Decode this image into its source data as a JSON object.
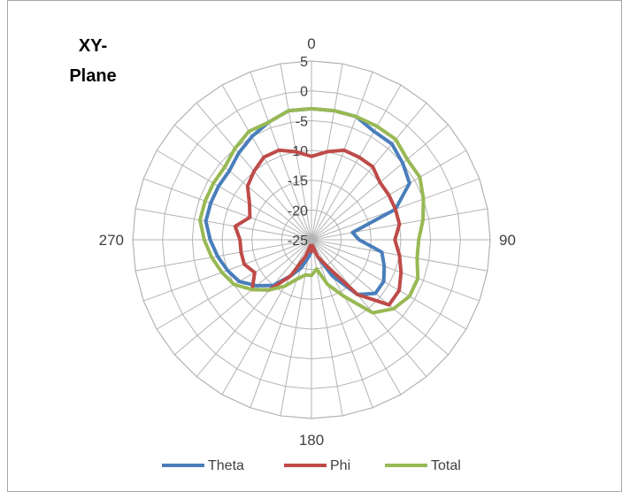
{
  "chart_data": {
    "type": "radar",
    "title_lines": [
      "XY-",
      "Plane"
    ],
    "angle_labels": [
      {
        "angle": 0,
        "text": "0"
      },
      {
        "angle": 90,
        "text": "90"
      },
      {
        "angle": 180,
        "text": "180"
      },
      {
        "angle": 270,
        "text": "270"
      }
    ],
    "radial_axis": {
      "min": -25,
      "max": 5,
      "step": 5,
      "tick_labels": [
        "-25",
        "-20",
        "-15",
        "-10",
        "-5",
        "0",
        "5"
      ]
    },
    "angle_step_deg": 10,
    "grid": true,
    "legend": {
      "position": "bottom"
    },
    "series": [
      {
        "name": "Theta",
        "color": "#4a7ebb",
        "angles": [
          0,
          10,
          20,
          30,
          40,
          50,
          60,
          70,
          80,
          90,
          100,
          110,
          120,
          130,
          140,
          150,
          160,
          170,
          180,
          190,
          200,
          210,
          220,
          230,
          240,
          250,
          260,
          270,
          280,
          290,
          300,
          310,
          320,
          330,
          340,
          350
        ],
        "values": [
          -3,
          -3,
          -3,
          -4,
          -4,
          -5,
          -6,
          -10,
          -18,
          -17,
          -13,
          -12,
          -11,
          -11,
          -13,
          -18,
          -22,
          -24,
          -23,
          -22,
          -20,
          -18,
          -15,
          -13,
          -11,
          -10,
          -9,
          -8,
          -7,
          -7,
          -7,
          -7,
          -6,
          -5,
          -4,
          -3
        ]
      },
      {
        "name": "Phi",
        "color": "#be4b48",
        "angles": [
          0,
          10,
          20,
          30,
          40,
          50,
          60,
          70,
          80,
          90,
          100,
          110,
          120,
          130,
          140,
          150,
          160,
          170,
          180,
          190,
          200,
          210,
          220,
          230,
          240,
          250,
          260,
          270,
          280,
          290,
          300,
          310,
          320,
          330,
          340,
          350
        ],
        "values": [
          -11,
          -10,
          -9,
          -9,
          -9,
          -10,
          -10,
          -10,
          -10,
          -11,
          -10,
          -9,
          -8,
          -8,
          -13,
          -20,
          -22,
          -24,
          -23,
          -24,
          -22,
          -18,
          -14,
          -12,
          -14,
          -13,
          -13,
          -13,
          -12,
          -14,
          -13,
          -11,
          -10,
          -9,
          -9,
          -10
        ]
      },
      {
        "name": "Total",
        "color": "#98b954",
        "angles": [
          0,
          10,
          20,
          30,
          40,
          50,
          60,
          70,
          80,
          90,
          100,
          110,
          120,
          130,
          140,
          150,
          160,
          170,
          180,
          190,
          200,
          210,
          220,
          230,
          240,
          250,
          260,
          270,
          280,
          290,
          300,
          310,
          320,
          330,
          340,
          350
        ],
        "values": [
          -3,
          -3,
          -3,
          -3,
          -3,
          -4,
          -4,
          -5,
          -6,
          -7,
          -7,
          -6,
          -6,
          -7,
          -9,
          -14,
          -17,
          -20,
          -19,
          -19,
          -18,
          -16,
          -14,
          -12,
          -10,
          -9,
          -8,
          -7,
          -6,
          -6,
          -6,
          -6,
          -5,
          -4,
          -4,
          -3
        ]
      }
    ]
  }
}
